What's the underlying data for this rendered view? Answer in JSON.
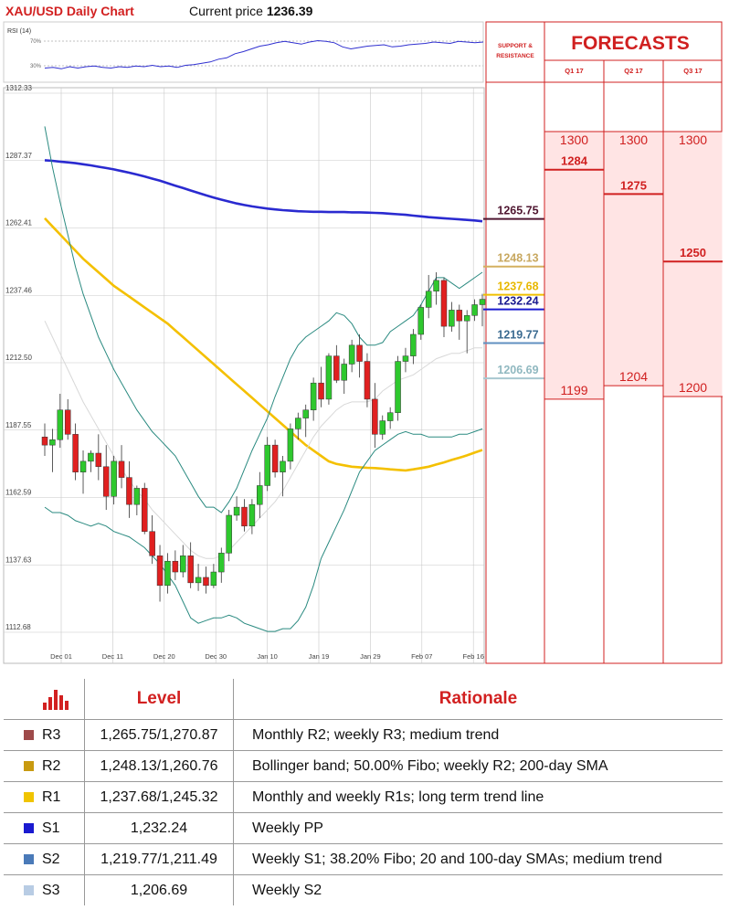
{
  "header": {
    "title": "XAU/USD Daily Chart",
    "price_label": "Current price",
    "price_value": "1236.39"
  },
  "rsi": {
    "label": "RSI (14)",
    "levels": [
      "70%",
      "30%"
    ],
    "values": [
      34,
      35,
      33,
      36,
      34,
      36,
      37,
      35,
      34,
      36,
      35,
      37,
      36,
      38,
      36,
      37,
      35,
      38,
      39,
      41,
      43,
      47,
      49,
      55,
      58,
      62,
      66,
      68,
      71,
      73,
      71,
      69,
      72,
      74,
      73,
      71,
      65,
      62,
      64,
      66,
      67,
      68,
      65,
      66,
      68,
      69,
      70,
      72,
      71,
      70,
      73,
      72,
      71,
      72
    ]
  },
  "chart_data": {
    "type": "candlestick",
    "ylim": [
      1112.68,
      1312.33
    ],
    "y_ticks": [
      "1312.33",
      "1287.37",
      "1262.41",
      "1237.46",
      "1212.50",
      "1187.55",
      "1162.59",
      "1137.63",
      "1112.68"
    ],
    "x_ticks": [
      "Dec 01",
      "Dec 11",
      "Dec 20",
      "Dec 30",
      "Jan 10",
      "Jan 19",
      "Jan 29",
      "Feb 07",
      "Feb 16"
    ],
    "candles": [
      [
        1185,
        1190,
        1178,
        1182
      ],
      [
        1182,
        1188,
        1172,
        1184
      ],
      [
        1184,
        1201,
        1181,
        1195
      ],
      [
        1195,
        1199,
        1184,
        1186
      ],
      [
        1186,
        1190,
        1169,
        1172
      ],
      [
        1172,
        1180,
        1164,
        1176
      ],
      [
        1176,
        1180,
        1172,
        1179
      ],
      [
        1179,
        1186,
        1169,
        1174
      ],
      [
        1174,
        1182,
        1158,
        1163
      ],
      [
        1163,
        1178,
        1160,
        1176
      ],
      [
        1176,
        1182,
        1166,
        1170
      ],
      [
        1170,
        1176,
        1155,
        1160
      ],
      [
        1160,
        1167,
        1156,
        1166
      ],
      [
        1166,
        1168,
        1149,
        1150
      ],
      [
        1150,
        1156,
        1138,
        1141
      ],
      [
        1141,
        1145,
        1124,
        1130
      ],
      [
        1130,
        1142,
        1127,
        1139
      ],
      [
        1139,
        1143,
        1132,
        1135
      ],
      [
        1135,
        1145,
        1133,
        1141
      ],
      [
        1141,
        1146,
        1129,
        1131
      ],
      [
        1131,
        1138,
        1128,
        1133
      ],
      [
        1133,
        1137,
        1127,
        1130
      ],
      [
        1130,
        1138,
        1129,
        1135
      ],
      [
        1135,
        1144,
        1131,
        1142
      ],
      [
        1142,
        1158,
        1139,
        1156
      ],
      [
        1156,
        1163,
        1154,
        1159
      ],
      [
        1159,
        1162,
        1150,
        1152
      ],
      [
        1152,
        1162,
        1149,
        1160
      ],
      [
        1160,
        1172,
        1155,
        1167
      ],
      [
        1167,
        1185,
        1165,
        1182
      ],
      [
        1182,
        1184,
        1170,
        1172
      ],
      [
        1172,
        1178,
        1163,
        1176
      ],
      [
        1176,
        1190,
        1173,
        1188
      ],
      [
        1188,
        1194,
        1184,
        1192
      ],
      [
        1192,
        1197,
        1185,
        1195
      ],
      [
        1195,
        1207,
        1191,
        1205
      ],
      [
        1205,
        1211,
        1196,
        1199
      ],
      [
        1199,
        1216,
        1197,
        1215
      ],
      [
        1215,
        1219,
        1205,
        1206
      ],
      [
        1206,
        1214,
        1201,
        1212
      ],
      [
        1212,
        1221,
        1209,
        1219
      ],
      [
        1219,
        1223,
        1207,
        1213
      ],
      [
        1213,
        1216,
        1196,
        1199
      ],
      [
        1199,
        1205,
        1181,
        1186
      ],
      [
        1186,
        1193,
        1184,
        1191
      ],
      [
        1191,
        1196,
        1188,
        1194
      ],
      [
        1194,
        1215,
        1191,
        1213
      ],
      [
        1213,
        1218,
        1209,
        1215
      ],
      [
        1215,
        1225,
        1212,
        1223
      ],
      [
        1223,
        1234,
        1221,
        1233
      ],
      [
        1233,
        1245,
        1229,
        1239
      ],
      [
        1239,
        1246,
        1234,
        1243
      ],
      [
        1243,
        1244,
        1222,
        1226
      ],
      [
        1226,
        1235,
        1224,
        1232
      ],
      [
        1232,
        1234,
        1221,
        1228
      ],
      [
        1228,
        1232,
        1216,
        1230
      ],
      [
        1230,
        1236,
        1228,
        1234
      ],
      [
        1234,
        1238,
        1226,
        1236
      ]
    ],
    "series": [
      {
        "values": [
          1287.5,
          1287.3,
          1287.0,
          1286.7,
          1286.4,
          1286.0,
          1285.6,
          1285.1,
          1284.6,
          1284.1,
          1283.5,
          1282.9,
          1282.2,
          1281.5,
          1280.7,
          1279.9,
          1279.0,
          1278.1,
          1277.2,
          1276.3,
          1275.4,
          1274.5,
          1273.7,
          1272.9,
          1272.2,
          1271.5,
          1270.9,
          1270.4,
          1270.0,
          1269.6,
          1269.3,
          1269.0,
          1268.8,
          1268.6,
          1268.5,
          1268.4,
          1268.4,
          1268.3,
          1268.3,
          1268.3,
          1268.2,
          1268.2,
          1268.1,
          1268.0,
          1267.9,
          1267.7,
          1267.5,
          1267.3,
          1267.0,
          1266.7,
          1266.4,
          1266.2,
          1266.0,
          1265.8,
          1265.6,
          1265.4,
          1265.2,
          1264.9
        ]
      },
      {
        "values": [
          1266.0,
          1263.0,
          1260.0,
          1257.0,
          1254.0,
          1251.0,
          1248.5,
          1246.0,
          1243.5,
          1241.0,
          1239.0,
          1237.0,
          1235.0,
          1233.0,
          1231.0,
          1229.0,
          1227.0,
          1224.5,
          1222.0,
          1219.5,
          1217.0,
          1214.5,
          1212.0,
          1209.5,
          1207.0,
          1204.5,
          1202.0,
          1199.5,
          1197.0,
          1194.5,
          1192.0,
          1189.5,
          1187.0,
          1184.5,
          1182.0,
          1180.0,
          1178.0,
          1176.0,
          1175.0,
          1174.5,
          1174.0,
          1173.8,
          1173.6,
          1173.5,
          1173.3,
          1173.0,
          1172.8,
          1172.6,
          1173.0,
          1173.5,
          1174.0,
          1174.8,
          1175.6,
          1176.5,
          1177.3,
          1178.2,
          1179.2,
          1180.2
        ]
      },
      {
        "values": [
          1300,
          1285,
          1272,
          1260,
          1248,
          1238,
          1230,
          1222,
          1216,
          1210,
          1205,
          1200,
          1195,
          1191,
          1187,
          1184,
          1181,
          1178,
          1173,
          1168,
          1163,
          1159,
          1159,
          1157,
          1161,
          1166,
          1173,
          1180,
          1186,
          1192,
          1200,
          1207,
          1214,
          1219,
          1222,
          1224,
          1226,
          1228,
          1231,
          1230,
          1227,
          1222,
          1219,
          1219,
          1220,
          1224,
          1226,
          1228,
          1230,
          1234,
          1239,
          1244,
          1244,
          1242,
          1240,
          1242,
          1244,
          1246
        ]
      },
      {
        "values": [
          1159,
          1157,
          1157,
          1156,
          1154,
          1153,
          1152,
          1153,
          1152,
          1150,
          1149,
          1148,
          1146,
          1144,
          1141,
          1138,
          1134,
          1130,
          1124,
          1118,
          1116,
          1117,
          1118,
          1118,
          1119,
          1118,
          1116,
          1115,
          1114,
          1113,
          1113,
          1114,
          1114,
          1117,
          1122,
          1130,
          1140,
          1146,
          1152,
          1158,
          1165,
          1172,
          1176,
          1180,
          1182,
          1184,
          1186,
          1187,
          1186,
          1186,
          1185,
          1185,
          1185,
          1185,
          1186,
          1186,
          1187,
          1188
        ]
      },
      {
        "values": [
          1228,
          1222,
          1216,
          1210,
          1204,
          1198,
          1193,
          1188,
          1183,
          1178,
          1173,
          1169,
          1165,
          1162,
          1158,
          1155,
          1152,
          1149,
          1146,
          1143,
          1141,
          1140,
          1140,
          1141,
          1143,
          1146,
          1149,
          1152,
          1155,
          1158,
          1161,
          1165,
          1170,
          1175,
          1180,
          1185,
          1189,
          1192,
          1195,
          1197,
          1198,
          1198,
          1198,
          1199,
          1202,
          1204,
          1206,
          1207,
          1208,
          1210,
          1212,
          1214,
          1215,
          1216,
          1216,
          1217,
          1218,
          1218
        ]
      }
    ]
  },
  "sr": {
    "title_line1": "SUPPORT &",
    "title_line2": "RESISTANCE",
    "levels": [
      {
        "label": "1265.75",
        "value": 1265.75,
        "color": "#4f1630",
        "line": "#4f1630"
      },
      {
        "label": "1248.13",
        "value": 1248.13,
        "color": "#c8a860",
        "line": "#d4b060"
      },
      {
        "label": "1237.68",
        "value": 1237.68,
        "color": "#e8b800",
        "line": "#f0c000"
      },
      {
        "label": "1232.24",
        "value": 1232.24,
        "color": "#1a1a90",
        "line": "#1a1ad0"
      },
      {
        "label": "1219.77",
        "value": 1219.77,
        "color": "#3a6a90",
        "line": "#6090c0"
      },
      {
        "label": "1206.69",
        "value": 1206.69,
        "color": "#90b8c0",
        "line": "#a8c8d0"
      }
    ]
  },
  "forecasts": {
    "title": "FORECASTS",
    "columns": [
      {
        "quarter": "Q1 17",
        "max": "1300",
        "avg": "1284",
        "avg_value": 1284,
        "min": "1199",
        "min_value": 1199
      },
      {
        "quarter": "Q2 17",
        "max": "1300",
        "avg": "1275",
        "avg_value": 1275,
        "min": "1204",
        "min_value": 1204
      },
      {
        "quarter": "Q3 17",
        "max": "1300",
        "avg": "1250",
        "avg_value": 1250,
        "min": "1200",
        "min_value": 1200
      }
    ]
  },
  "table": {
    "level_header": "Level",
    "rationale_header": "Rationale",
    "rows": [
      {
        "name": "R3",
        "color": "#9e4a4a",
        "level": "1,265.75/1,270.87",
        "rationale": "Monthly R2; weekly R3; medium trend"
      },
      {
        "name": "R2",
        "color": "#c89a10",
        "level": "1,248.13/1,260.76",
        "rationale": "Bollinger band; 50.00% Fibo; weekly R2; 200-day SMA"
      },
      {
        "name": "R1",
        "color": "#f0c400",
        "level": "1,237.68/1,245.32",
        "rationale": "Monthly and weekly R1s; long term trend line"
      },
      {
        "name": "S1",
        "color": "#1a1ad0",
        "level": "1,232.24",
        "rationale": "Weekly PP"
      },
      {
        "name": "S2",
        "color": "#4a7ab8",
        "level": "1,219.77/1,211.49",
        "rationale": "Weekly S1; 38.20% Fibo; 20 and 100-day SMAs; medium trend"
      },
      {
        "name": "S3",
        "color": "#b8cce4",
        "level": "1,206.69",
        "rationale": "Weekly S2"
      }
    ]
  }
}
